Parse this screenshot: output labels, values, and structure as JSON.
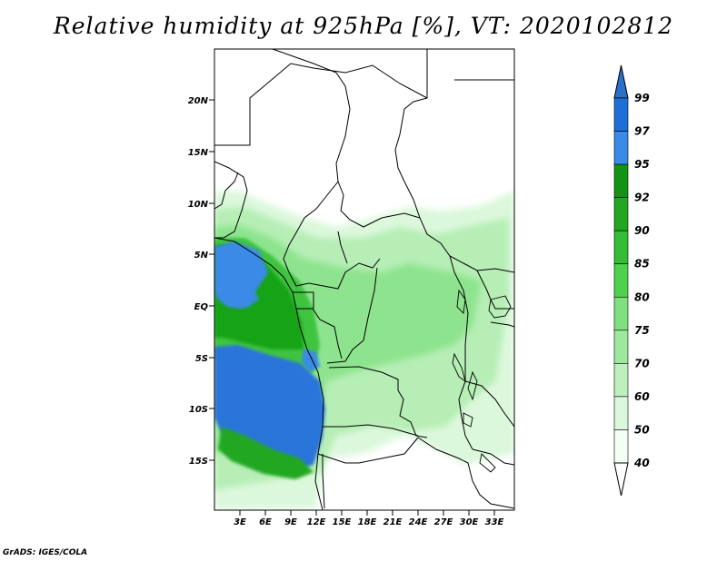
{
  "title": "Relative humidity at 925hPa [%], VT: 2020102812",
  "credit": "GrADS: IGES/COLA",
  "lat_ticks": [
    "20N",
    "15N",
    "10N",
    "5N",
    "EQ",
    "5S",
    "10S",
    "15S"
  ],
  "lon_ticks": [
    "3E",
    "6E",
    "9E",
    "12E",
    "15E",
    "18E",
    "21E",
    "24E",
    "27E",
    "30E",
    "33E"
  ],
  "colorbar": {
    "levels": [
      "99",
      "97",
      "95",
      "92",
      "90",
      "85",
      "80",
      "75",
      "70",
      "60",
      "50",
      "40"
    ],
    "colors": [
      "#2a6fc9",
      "#1e6ed8",
      "#3a8ae8",
      "#139313",
      "#21a721",
      "#34bd34",
      "#4dd24d",
      "#7ee07e",
      "#9ee89e",
      "#bdf0bd",
      "#dcf8dc",
      "#f2fff2",
      "#ffffff"
    ]
  }
}
